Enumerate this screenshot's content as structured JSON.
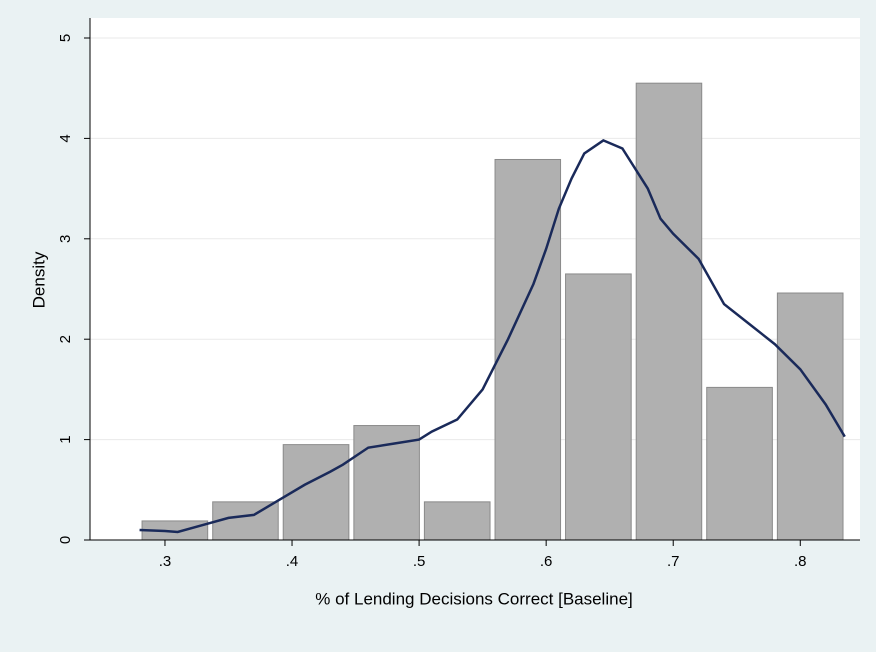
{
  "chart_data": {
    "type": "histogram",
    "xlabel": "% of Lending Decisions Correct [Baseline]",
    "ylabel": "Density",
    "bins": [
      0.28,
      0.3356,
      0.3911,
      0.4467,
      0.5022,
      0.5578,
      0.6133,
      0.6689,
      0.7244,
      0.78,
      0.8356
    ],
    "values": [
      0.19,
      0.38,
      0.95,
      1.14,
      0.38,
      3.79,
      2.65,
      4.55,
      1.52,
      2.46
    ],
    "color": "#b0b0b0",
    "density": {
      "color": "#1a2a5a",
      "x": [
        0.28,
        0.3,
        0.31,
        0.33,
        0.35,
        0.37,
        0.39,
        0.41,
        0.43,
        0.44,
        0.46,
        0.48,
        0.5,
        0.51,
        0.53,
        0.55,
        0.57,
        0.59,
        0.6,
        0.61,
        0.62,
        0.63,
        0.645,
        0.66,
        0.68,
        0.69,
        0.7,
        0.72,
        0.74,
        0.76,
        0.78,
        0.8,
        0.82,
        0.835
      ],
      "y": [
        0.1,
        0.09,
        0.08,
        0.15,
        0.22,
        0.25,
        0.4,
        0.55,
        0.68,
        0.75,
        0.92,
        0.96,
        1.0,
        1.08,
        1.2,
        1.5,
        2.0,
        2.55,
        2.9,
        3.3,
        3.6,
        3.85,
        3.98,
        3.9,
        3.5,
        3.2,
        3.05,
        2.8,
        2.35,
        2.15,
        1.95,
        1.7,
        1.35,
        1.03
      ]
    },
    "xlim": [
      0.241,
      0.847
    ],
    "ylim": [
      0,
      5
    ],
    "xticks": [
      {
        "value": 0.3,
        "label": ".3"
      },
      {
        "value": 0.4,
        "label": ".4"
      },
      {
        "value": 0.5,
        "label": ".5"
      },
      {
        "value": 0.6,
        "label": ".6"
      },
      {
        "value": 0.7,
        "label": ".7"
      },
      {
        "value": 0.8,
        "label": ".8"
      }
    ],
    "yticks": [
      0,
      1,
      2,
      3,
      4,
      5
    ],
    "grid": true
  }
}
